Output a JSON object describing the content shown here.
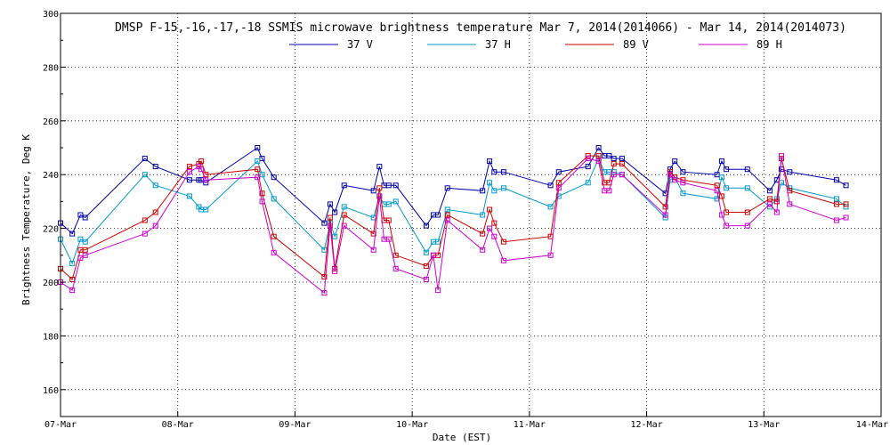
{
  "chart_data": {
    "type": "line",
    "title": "DMSP F-15,-16,-17,-18 SSMIS microwave brightness temperature Mar  7, 2014(2014066) - Mar 14, 2014(2014073)",
    "xlabel": "Date (EST)",
    "ylabel": "Brightness Temperature, Deg K",
    "xlim": [
      0,
      7
    ],
    "ylim": [
      150,
      300
    ],
    "yticks": [
      160,
      180,
      200,
      220,
      240,
      260,
      280,
      300
    ],
    "xticks": [
      0,
      1,
      2,
      3,
      4,
      5,
      6,
      7
    ],
    "xtick_labels": [
      "07-Mar",
      "08-Mar",
      "09-Mar",
      "10-Mar",
      "11-Mar",
      "12-Mar",
      "13-Mar",
      "14-Mar"
    ],
    "grid": true,
    "legend_position": "top-center",
    "series": [
      {
        "name": "37 V",
        "color": "#0000aa",
        "x": [
          0,
          0.1,
          0.17,
          0.21,
          0.72,
          0.81,
          1.1,
          1.18,
          1.2,
          1.24,
          1.68,
          1.72,
          1.82,
          2.25,
          2.3,
          2.34,
          2.42,
          2.67,
          2.72,
          2.76,
          2.8,
          2.86,
          3.12,
          3.18,
          3.22,
          3.3,
          3.6,
          3.66,
          3.7,
          3.78,
          4.18,
          4.25,
          4.5,
          4.59,
          4.64,
          4.68,
          4.72,
          4.79,
          5.16,
          5.2,
          5.24,
          5.31,
          5.6,
          5.64,
          5.68,
          5.86,
          6.05,
          6.11,
          6.15,
          6.22,
          6.62,
          6.7
        ],
        "y": [
          222,
          218,
          225,
          224,
          246,
          243,
          238,
          238,
          238,
          237,
          250,
          246,
          239,
          222,
          229,
          226,
          236,
          234,
          243,
          236,
          236,
          236,
          221,
          225,
          225,
          235,
          234,
          245,
          241,
          241,
          236,
          241,
          243,
          250,
          247,
          247,
          246,
          246,
          233,
          242,
          245,
          241,
          240,
          245,
          242,
          242,
          234,
          238,
          242,
          241,
          238,
          236
        ]
      },
      {
        "name": "37 H",
        "color": "#0099cc",
        "x": [
          0,
          0.1,
          0.17,
          0.21,
          0.72,
          0.81,
          1.1,
          1.18,
          1.2,
          1.24,
          1.68,
          1.72,
          1.82,
          2.25,
          2.3,
          2.34,
          2.42,
          2.67,
          2.72,
          2.76,
          2.8,
          2.86,
          3.12,
          3.18,
          3.22,
          3.3,
          3.6,
          3.66,
          3.7,
          3.78,
          4.18,
          4.25,
          4.5,
          4.59,
          4.64,
          4.68,
          4.72,
          4.79,
          5.16,
          5.2,
          5.24,
          5.31,
          5.6,
          5.64,
          5.68,
          5.86,
          6.05,
          6.11,
          6.15,
          6.22,
          6.62,
          6.7
        ],
        "y": [
          216,
          207,
          216,
          215,
          240,
          236,
          232,
          228,
          227,
          227,
          245,
          240,
          231,
          212,
          222,
          217,
          228,
          224,
          232,
          229,
          229,
          230,
          211,
          215,
          215,
          227,
          225,
          237,
          234,
          235,
          228,
          232,
          237,
          246,
          241,
          241,
          241,
          240,
          224,
          238,
          239,
          233,
          231,
          239,
          235,
          235,
          228,
          231,
          237,
          235,
          231,
          228
        ]
      },
      {
        "name": "89 V",
        "color": "#cc0000",
        "x": [
          0,
          0.1,
          0.17,
          0.21,
          0.72,
          0.81,
          1.1,
          1.18,
          1.2,
          1.24,
          1.68,
          1.72,
          1.82,
          2.25,
          2.3,
          2.34,
          2.42,
          2.67,
          2.72,
          2.76,
          2.8,
          2.86,
          3.12,
          3.18,
          3.22,
          3.3,
          3.6,
          3.66,
          3.7,
          3.78,
          4.18,
          4.25,
          4.5,
          4.59,
          4.64,
          4.68,
          4.72,
          4.79,
          5.16,
          5.2,
          5.24,
          5.31,
          5.6,
          5.64,
          5.68,
          5.86,
          6.05,
          6.11,
          6.15,
          6.22,
          6.62,
          6.7
        ],
        "y": [
          205,
          201,
          212,
          212,
          223,
          226,
          243,
          244,
          245,
          240,
          242,
          233,
          217,
          202,
          224,
          205,
          225,
          218,
          235,
          223,
          223,
          210,
          206,
          210,
          210,
          225,
          218,
          227,
          222,
          215,
          217,
          237,
          247,
          247,
          237,
          237,
          244,
          244,
          228,
          241,
          239,
          238,
          236,
          232,
          226,
          226,
          231,
          230,
          246,
          234,
          229,
          229
        ]
      },
      {
        "name": "89 H",
        "color": "#cc00cc",
        "x": [
          0,
          0.1,
          0.17,
          0.21,
          0.72,
          0.81,
          1.1,
          1.18,
          1.2,
          1.24,
          1.68,
          1.72,
          1.82,
          2.25,
          2.3,
          2.34,
          2.42,
          2.67,
          2.72,
          2.76,
          2.8,
          2.86,
          3.12,
          3.18,
          3.22,
          3.3,
          3.6,
          3.66,
          3.7,
          3.78,
          4.18,
          4.25,
          4.5,
          4.59,
          4.64,
          4.68,
          4.72,
          4.79,
          5.16,
          5.2,
          5.24,
          5.31,
          5.6,
          5.64,
          5.68,
          5.86,
          6.05,
          6.11,
          6.15,
          6.22,
          6.62,
          6.7
        ],
        "y": [
          200,
          197,
          209,
          210,
          218,
          221,
          241,
          243,
          242,
          238,
          239,
          230,
          211,
          196,
          221,
          204,
          221,
          212,
          232,
          216,
          216,
          205,
          201,
          210,
          197,
          223,
          212,
          220,
          217,
          208,
          210,
          235,
          246,
          245,
          234,
          234,
          240,
          240,
          225,
          240,
          238,
          237,
          234,
          225,
          221,
          221,
          229,
          226,
          247,
          229,
          223,
          224
        ]
      }
    ]
  }
}
